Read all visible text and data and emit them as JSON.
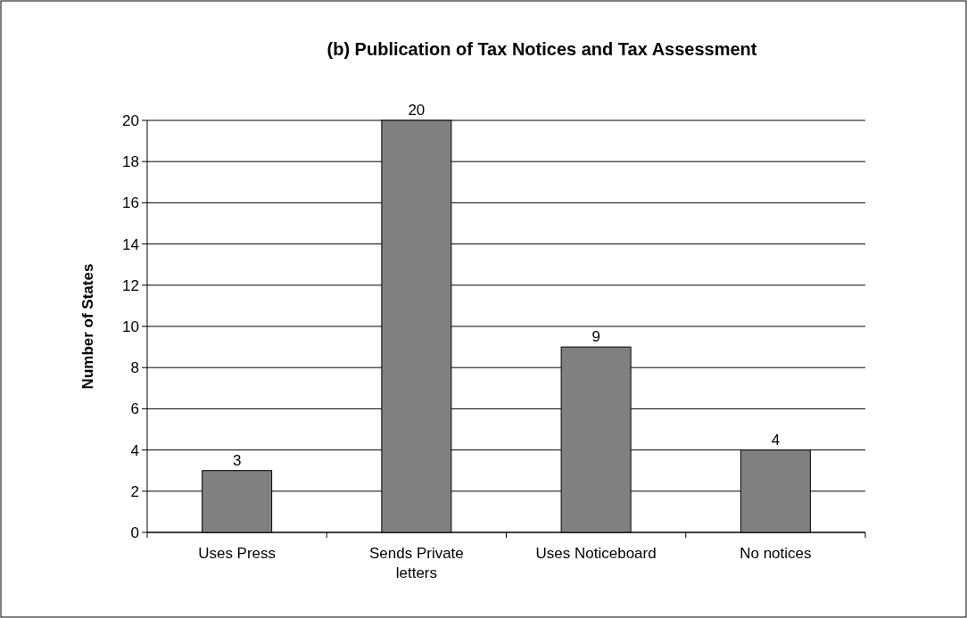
{
  "chart_data": {
    "type": "bar",
    "title": "(b) Publication of Tax Notices and Tax Assessment",
    "ylabel": "Number of States",
    "categories": [
      "Uses Press",
      "Sends Private letters",
      "Uses Noticeboard",
      "No notices"
    ],
    "values": [
      3,
      20,
      9,
      4
    ],
    "color": "#808080",
    "ylim": [
      0,
      20
    ],
    "yticks": [
      0,
      2,
      4,
      6,
      8,
      10,
      12,
      14,
      16,
      18,
      20
    ],
    "grid": "y",
    "data_labels": true
  }
}
